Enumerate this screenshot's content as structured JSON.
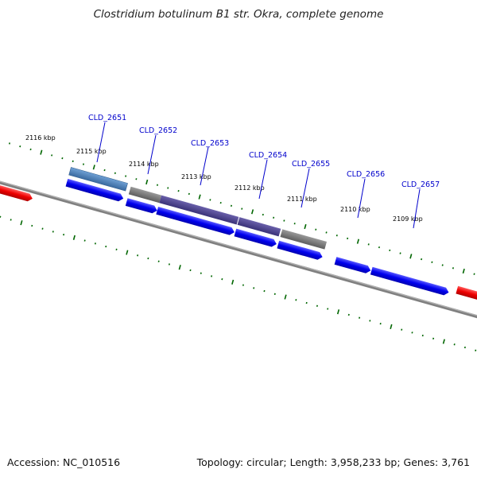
{
  "title": "Clostridium botulinum B1 str. Okra, complete genome",
  "footer": {
    "accession": "Accession: NC_010516",
    "summary": "Topology: circular; Length: 3,958,233 bp; Genes: 3,761"
  },
  "kbp_labels": [
    "2116 kbp",
    "2115 kbp",
    "2114 kbp",
    "2113 kbp",
    "2112 kbp",
    "2111 kbp",
    "2110 kbp",
    "2109 kbp"
  ],
  "gene_labels": [
    "CLD_2651",
    "CLD_2652",
    "CLD_2653",
    "CLD_2654",
    "CLD_2655",
    "CLD_2656",
    "CLD_2657"
  ],
  "colors": {
    "backbone": "#808080",
    "gene": "#0000ee",
    "gene_red": "#ee0000",
    "tick": "#006600",
    "label": "#0000cc",
    "cog_blue": "#4a80b8",
    "cog_gray": "#777777",
    "cog_purple": "#4a3f8c"
  }
}
